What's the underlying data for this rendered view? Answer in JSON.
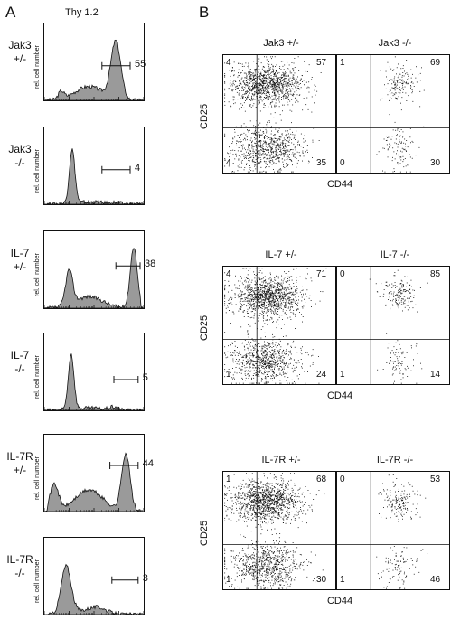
{
  "panel_a": {
    "letter": "A",
    "column_title": "Thy 1.2",
    "y_axis_label": "rel. cell number",
    "histograms": [
      {
        "row_label": [
          "Jak3",
          "+/-"
        ],
        "gate_value": "55"
      },
      {
        "row_label": [
          "Jak3",
          "-/-"
        ],
        "gate_value": "4"
      },
      {
        "row_label": [
          "IL-7",
          "+/-"
        ],
        "gate_value": "38"
      },
      {
        "row_label": [
          "IL-7",
          "-/-"
        ],
        "gate_value": "5"
      },
      {
        "row_label": [
          "IL-7R",
          "+/-"
        ],
        "gate_value": "44"
      },
      {
        "row_label": [
          "IL-7R",
          "-/-"
        ],
        "gate_value": "3"
      }
    ]
  },
  "panel_b": {
    "letter": "B",
    "y_axis_label": "CD25",
    "x_axis_label": "CD44",
    "groups": [
      {
        "plots": [
          {
            "title": "Jak3 +/-",
            "quadrants": {
              "ul": "4",
              "ur": "57",
              "ll": "4",
              "lr": "35"
            },
            "density": "high"
          },
          {
            "title": "Jak3 -/-",
            "quadrants": {
              "ul": "1",
              "ur": "69",
              "ll": "0",
              "lr": "30"
            },
            "density": "low"
          }
        ]
      },
      {
        "plots": [
          {
            "title": "IL-7 +/-",
            "quadrants": {
              "ul": "4",
              "ur": "71",
              "ll": "1",
              "lr": "24"
            },
            "density": "high"
          },
          {
            "title": "IL-7 -/-",
            "quadrants": {
              "ul": "0",
              "ur": "85",
              "ll": "1",
              "lr": "14"
            },
            "density": "low"
          }
        ]
      },
      {
        "plots": [
          {
            "title": "IL-7R +/-",
            "quadrants": {
              "ul": "1",
              "ur": "68",
              "ll": "1",
              "lr": "30"
            },
            "density": "high"
          },
          {
            "title": "IL-7R -/-",
            "quadrants": {
              "ul": "0",
              "ur": "53",
              "ll": "1",
              "lr": "46"
            },
            "density": "low"
          }
        ]
      }
    ]
  }
}
